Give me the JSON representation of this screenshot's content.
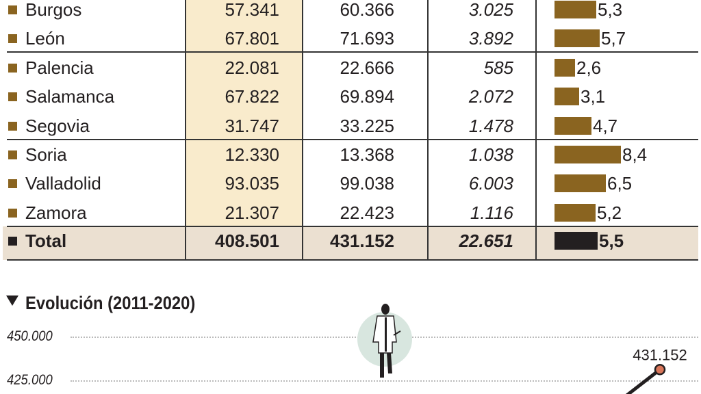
{
  "table": {
    "rows": [
      {
        "name": "Burgos",
        "c1": "57.341",
        "c2": "60.366",
        "c3": "3.025",
        "pct": 5.3,
        "pct_label": "5,3"
      },
      {
        "name": "León",
        "c1": "67.801",
        "c2": "71.693",
        "c3": "3.892",
        "pct": 5.7,
        "pct_label": "5,7"
      },
      {
        "name": "Palencia",
        "c1": "22.081",
        "c2": "22.666",
        "c3": "585",
        "pct": 2.6,
        "pct_label": "2,6"
      },
      {
        "name": "Salamanca",
        "c1": "67.822",
        "c2": "69.894",
        "c3": "2.072",
        "pct": 3.1,
        "pct_label": "3,1"
      },
      {
        "name": "Segovia",
        "c1": "31.747",
        "c2": "33.225",
        "c3": "1.478",
        "pct": 4.7,
        "pct_label": "4,7"
      },
      {
        "name": "Soria",
        "c1": "12.330",
        "c2": "13.368",
        "c3": "1.038",
        "pct": 8.4,
        "pct_label": "8,4"
      },
      {
        "name": "Valladolid",
        "c1": "93.035",
        "c2": "99.038",
        "c3": "6.003",
        "pct": 6.5,
        "pct_label": "6,5"
      },
      {
        "name": "Zamora",
        "c1": "21.307",
        "c2": "22.423",
        "c3": "1.116",
        "pct": 5.2,
        "pct_label": "5,2"
      }
    ],
    "total": {
      "name": "Total",
      "c1": "408.501",
      "c2": "431.152",
      "c3": "22.651",
      "pct": 5.5,
      "pct_label": "5,5"
    },
    "colors": {
      "bar": "#8a6420",
      "highlight_column": "#f9ebcc",
      "total_row": "#ebe0d1"
    }
  },
  "chart_data": {
    "type": "line",
    "title": "Evolución (2011-2020)",
    "y_ticks": [
      "450.000",
      "425.000"
    ],
    "grid": true,
    "series": [
      {
        "x": [
          2020
        ],
        "y": [
          431152
        ],
        "labels": [
          "431.152"
        ]
      }
    ],
    "colors": {
      "line": "#231f20",
      "marker": "#d9765a"
    },
    "icon": "doctor-figure-icon"
  }
}
